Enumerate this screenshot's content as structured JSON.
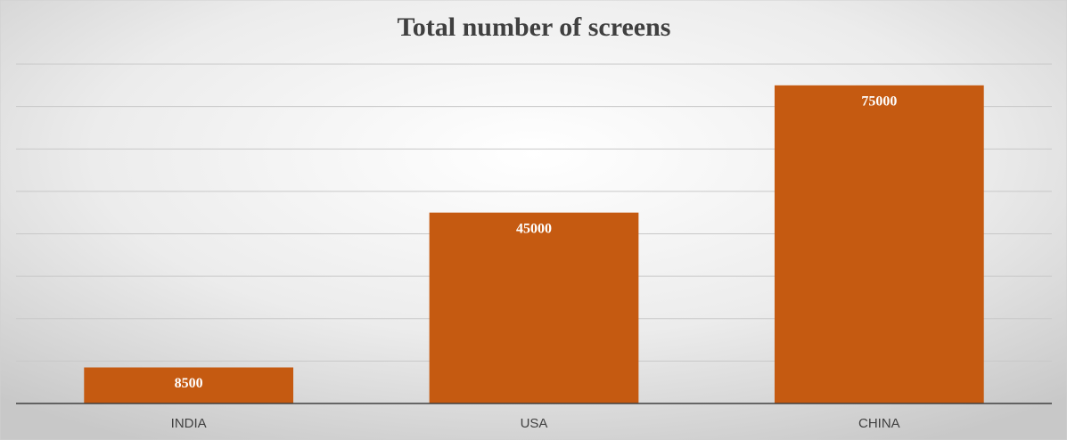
{
  "chart_data": {
    "type": "bar",
    "title": "Total number of screens",
    "categories": [
      "INDIA",
      "USA",
      "CHINA"
    ],
    "values": [
      8500,
      45000,
      75000
    ],
    "color": "#c55a11",
    "ylim": [
      0,
      80000
    ],
    "yticks": [
      0,
      10000,
      20000,
      30000,
      40000,
      50000,
      60000,
      70000,
      80000
    ],
    "grid": true
  }
}
